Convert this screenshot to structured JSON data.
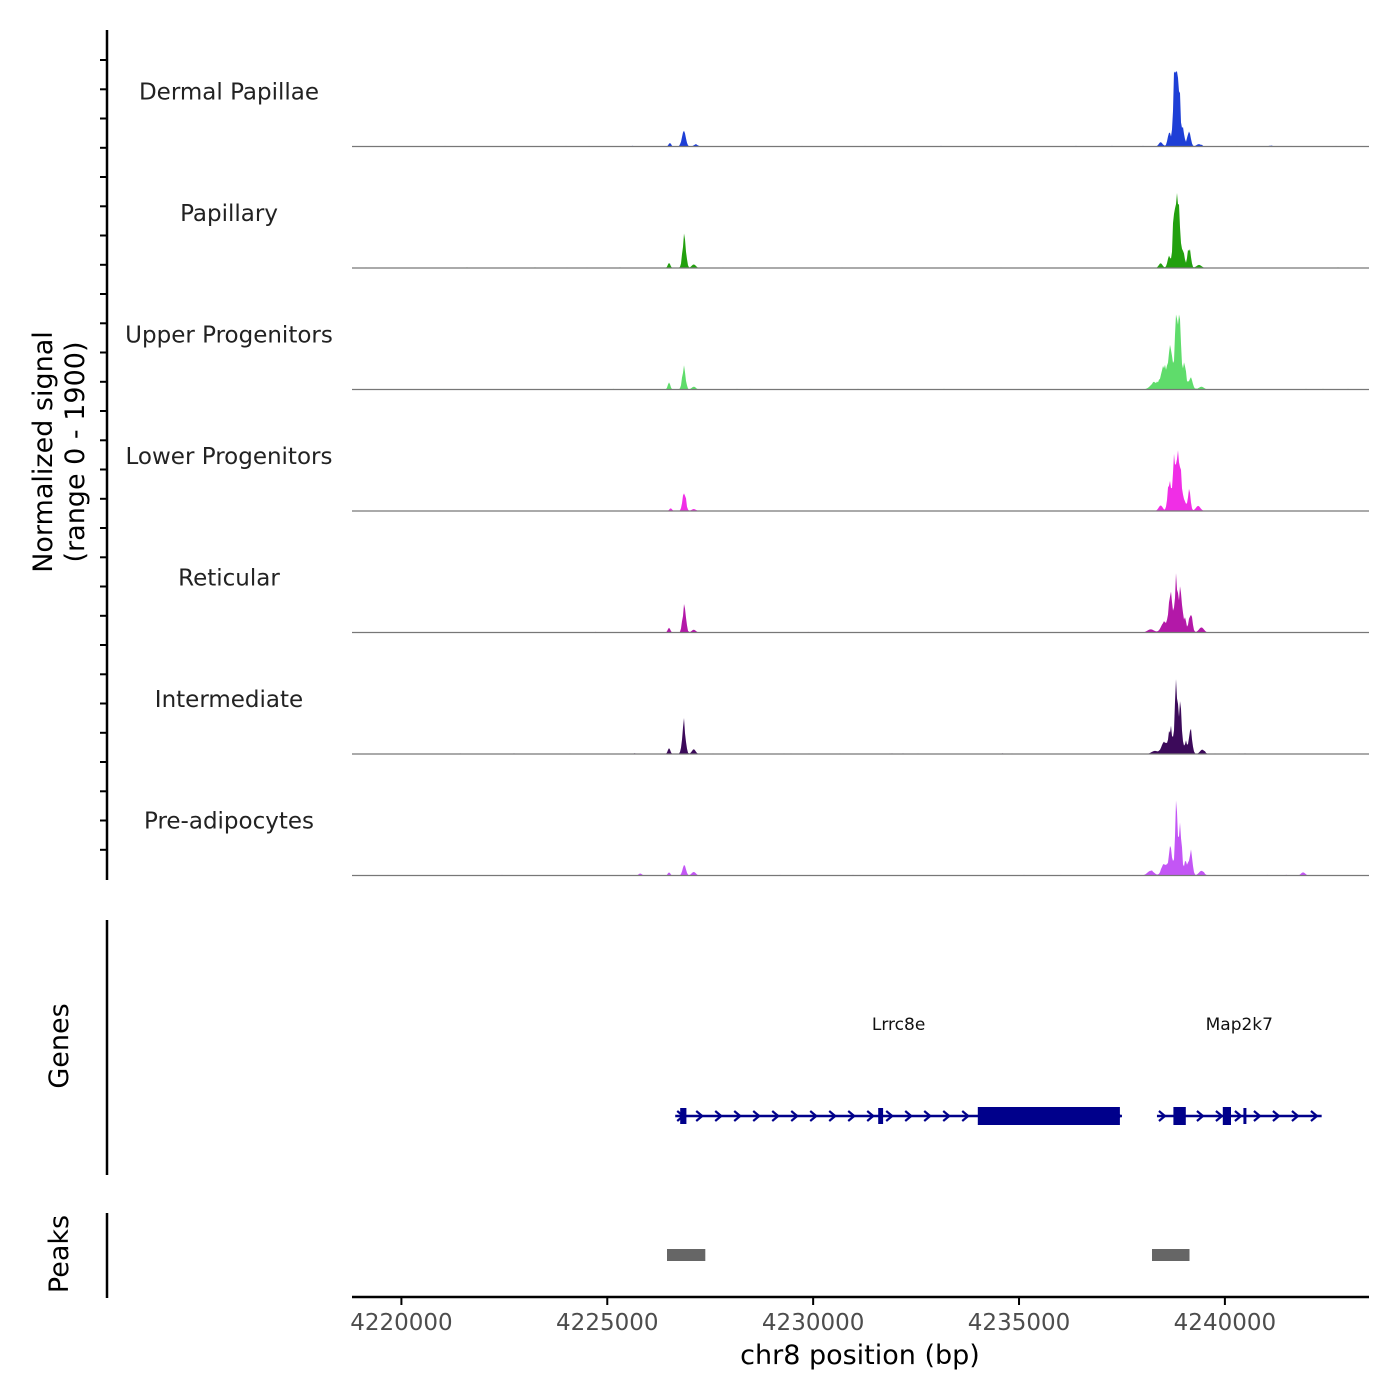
{
  "chart_data": {
    "type": "area",
    "title": "",
    "ylabel_line1": "Normalized signal",
    "ylabel_line2": "(range 0 - 1900)",
    "yrange": [
      0,
      1900
    ],
    "xlabel": "chr8 position (bp)",
    "chromosome": "chr8",
    "xlim": [
      4218800,
      4243500
    ],
    "xticks": [
      4220000,
      4225000,
      4230000,
      4235000,
      4240000
    ],
    "xtick_labels": [
      "4220000",
      "4225000",
      "4230000",
      "4235000",
      "4240000"
    ],
    "series": [
      {
        "name": "Dermal Papillae",
        "color": "#1e3fd6",
        "peaks": [
          [
            4226520,
            90,
            30
          ],
          [
            4226860,
            400,
            45
          ],
          [
            4227150,
            50,
            50
          ],
          [
            4238440,
            110,
            45
          ],
          [
            4238650,
            350,
            40
          ],
          [
            4238760,
            1350,
            25
          ],
          [
            4238820,
            1850,
            30
          ],
          [
            4238890,
            1450,
            30
          ],
          [
            4238980,
            450,
            35
          ],
          [
            4239130,
            380,
            40
          ],
          [
            4239370,
            60,
            60
          ],
          [
            4241100,
            20,
            40
          ]
        ]
      },
      {
        "name": "Papillary",
        "color": "#22a00e",
        "peaks": [
          [
            4226500,
            130,
            30
          ],
          [
            4226870,
            780,
            40
          ],
          [
            4227100,
            90,
            50
          ],
          [
            4238440,
            120,
            45
          ],
          [
            4238650,
            320,
            40
          ],
          [
            4238760,
            1350,
            25
          ],
          [
            4238820,
            1750,
            30
          ],
          [
            4238890,
            1300,
            30
          ],
          [
            4238980,
            450,
            35
          ],
          [
            4239130,
            500,
            40
          ],
          [
            4239370,
            80,
            60
          ]
        ]
      },
      {
        "name": "Upper Progenitors",
        "color": "#5fdc6b",
        "peaks": [
          [
            4226500,
            180,
            30
          ],
          [
            4226860,
            560,
            40
          ],
          [
            4227100,
            70,
            50
          ],
          [
            4238300,
            180,
            100
          ],
          [
            4238520,
            550,
            70
          ],
          [
            4238680,
            1000,
            50
          ],
          [
            4238820,
            1900,
            35
          ],
          [
            4238900,
            1500,
            35
          ],
          [
            4239020,
            650,
            40
          ],
          [
            4239170,
            300,
            45
          ],
          [
            4239430,
            70,
            60
          ]
        ]
      },
      {
        "name": "Lower Progenitors",
        "color": "#f02ee6",
        "peaks": [
          [
            4226540,
            70,
            30
          ],
          [
            4226870,
            500,
            40
          ],
          [
            4227100,
            50,
            50
          ],
          [
            4238440,
            140,
            50
          ],
          [
            4238650,
            700,
            40
          ],
          [
            4238760,
            1250,
            30
          ],
          [
            4238840,
            1500,
            30
          ],
          [
            4238920,
            1100,
            30
          ],
          [
            4239000,
            300,
            40
          ],
          [
            4239130,
            500,
            35
          ],
          [
            4239350,
            130,
            55
          ]
        ]
      },
      {
        "name": "Reticular",
        "color": "#b318a8",
        "peaks": [
          [
            4226500,
            120,
            30
          ],
          [
            4226870,
            640,
            40
          ],
          [
            4227100,
            70,
            50
          ],
          [
            4238200,
            80,
            80
          ],
          [
            4238520,
            250,
            70
          ],
          [
            4238680,
            1000,
            45
          ],
          [
            4238820,
            1400,
            35
          ],
          [
            4238920,
            1000,
            35
          ],
          [
            4239020,
            350,
            40
          ],
          [
            4239170,
            500,
            40
          ],
          [
            4239430,
            130,
            60
          ]
        ]
      },
      {
        "name": "Intermediate",
        "color": "#3c0a5a",
        "peaks": [
          [
            4226500,
            150,
            30
          ],
          [
            4226860,
            800,
            40
          ],
          [
            4227100,
            120,
            45
          ],
          [
            4238300,
            80,
            80
          ],
          [
            4238520,
            300,
            60
          ],
          [
            4238680,
            650,
            45
          ],
          [
            4238820,
            1650,
            35
          ],
          [
            4238920,
            1200,
            35
          ],
          [
            4239050,
            300,
            40
          ],
          [
            4239170,
            550,
            40
          ],
          [
            4239450,
            110,
            55
          ]
        ]
      },
      {
        "name": "Pre-adipocytes",
        "color": "#c356f5",
        "peaks": [
          [
            4225800,
            50,
            40
          ],
          [
            4226500,
            80,
            30
          ],
          [
            4226870,
            270,
            40
          ],
          [
            4227100,
            90,
            50
          ],
          [
            4238200,
            120,
            80
          ],
          [
            4238520,
            300,
            60
          ],
          [
            4238680,
            700,
            45
          ],
          [
            4238820,
            1850,
            30
          ],
          [
            4238920,
            1200,
            35
          ],
          [
            4239050,
            350,
            40
          ],
          [
            4239170,
            600,
            40
          ],
          [
            4239430,
            120,
            60
          ],
          [
            4241900,
            80,
            50
          ]
        ]
      }
    ]
  },
  "genes_track": {
    "title": "Genes",
    "strand": "+",
    "color": "#00008b",
    "genes": [
      {
        "name": "Lrrc8e",
        "start": 4226650,
        "end": 4237500,
        "exons": [
          [
            4226770,
            4226920,
            "thin"
          ],
          [
            4231580,
            4231700,
            "thin"
          ],
          [
            4234000,
            4237450,
            "thick"
          ]
        ]
      },
      {
        "name": "Map2k7",
        "start": 4238350,
        "end": 4242350,
        "exons": [
          [
            4238750,
            4239050,
            "thick"
          ],
          [
            4239950,
            4240150,
            "thick"
          ],
          [
            4240450,
            4240520,
            "thin"
          ]
        ]
      }
    ]
  },
  "peaks_track": {
    "title": "Peaks",
    "color": "#666666",
    "regions": [
      [
        4226450,
        4227380
      ],
      [
        4238230,
        4239140
      ]
    ]
  }
}
